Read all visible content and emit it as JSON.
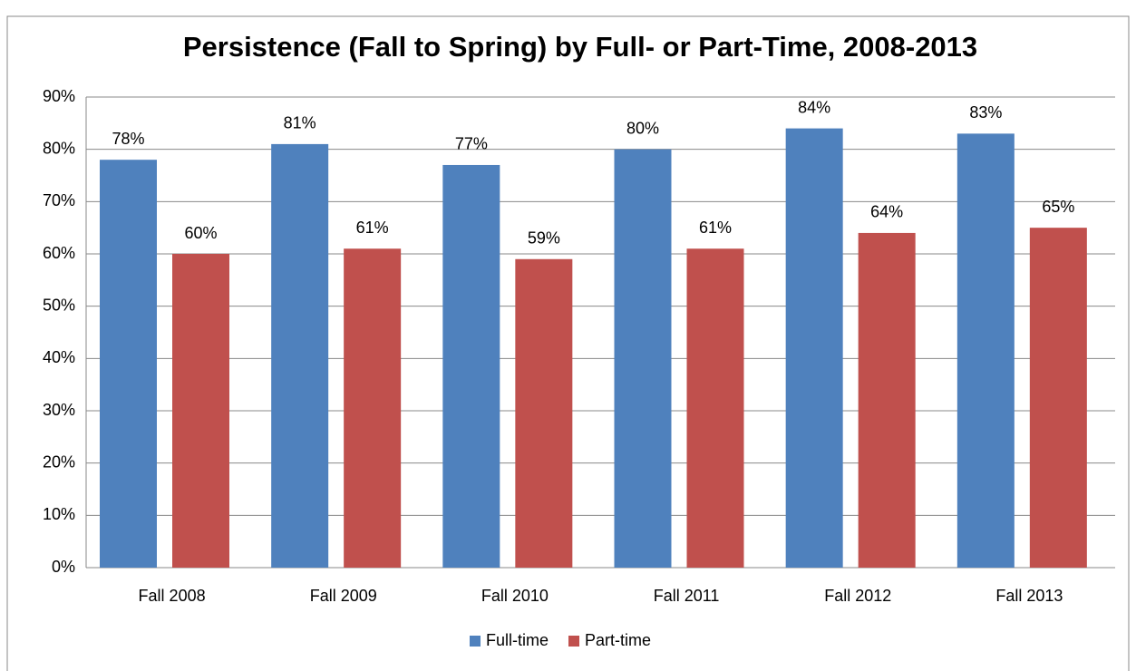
{
  "chart_data": {
    "type": "bar",
    "title": "Persistence (Fall to Spring) by Full- or Part-Time, 2008-2013",
    "categories": [
      "Fall 2008",
      "Fall 2009",
      "Fall 2010",
      "Fall 2011",
      "Fall 2012",
      "Fall 2013"
    ],
    "series": [
      {
        "name": "Full-time",
        "color": "#4f81bd",
        "values": [
          78,
          81,
          77,
          80,
          84,
          83
        ],
        "value_labels": [
          "78%",
          "81%",
          "77%",
          "80%",
          "84%",
          "83%"
        ]
      },
      {
        "name": "Part-time",
        "color": "#c0504d",
        "values": [
          60,
          61,
          59,
          61,
          64,
          65
        ],
        "value_labels": [
          "60%",
          "61%",
          "59%",
          "61%",
          "64%",
          "65%"
        ]
      }
    ],
    "ylim": [
      0,
      90
    ],
    "yticks": [
      {
        "value": 0,
        "label": "0%"
      },
      {
        "value": 10,
        "label": "10%"
      },
      {
        "value": 20,
        "label": "20%"
      },
      {
        "value": 30,
        "label": "30%"
      },
      {
        "value": 40,
        "label": "40%"
      },
      {
        "value": 50,
        "label": "50%"
      },
      {
        "value": 60,
        "label": "60%"
      },
      {
        "value": 70,
        "label": "70%"
      },
      {
        "value": 80,
        "label": "80%"
      },
      {
        "value": 90,
        "label": "90%"
      }
    ],
    "grid": true,
    "legend": "bottom"
  }
}
